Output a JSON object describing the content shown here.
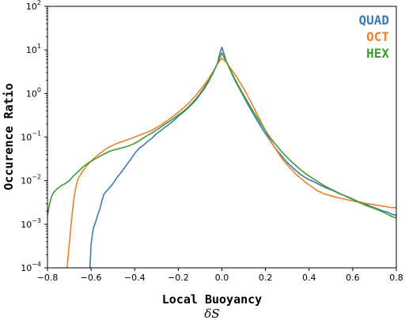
{
  "chart_data": {
    "type": "line",
    "title": "",
    "xlabel": "Local Buoyancy",
    "xlabel_symbol": "δS",
    "ylabel": "Occurence Ratio",
    "xlim": [
      -0.8,
      0.8
    ],
    "ylim": [
      0.0001,
      100
    ],
    "yscale": "log",
    "grid": false,
    "legend_position": "top-right",
    "x_ticks": [
      {
        "value": -0.8,
        "label": "−0.8"
      },
      {
        "value": -0.6,
        "label": "−0.6"
      },
      {
        "value": -0.4,
        "label": "−0.4"
      },
      {
        "value": -0.2,
        "label": "−0.2"
      },
      {
        "value": 0.0,
        "label": "0.0"
      },
      {
        "value": 0.2,
        "label": "0.2"
      },
      {
        "value": 0.4,
        "label": "0.4"
      },
      {
        "value": 0.6,
        "label": "0.6"
      },
      {
        "value": 0.8,
        "label": "0.8"
      }
    ],
    "y_ticks": [
      {
        "value": 0.0001,
        "base": "10",
        "exp": "−4"
      },
      {
        "value": 0.001,
        "base": "10",
        "exp": "−3"
      },
      {
        "value": 0.01,
        "base": "10",
        "exp": "−2"
      },
      {
        "value": 0.1,
        "base": "10",
        "exp": "−1"
      },
      {
        "value": 1,
        "base": "10",
        "exp": "0"
      },
      {
        "value": 10,
        "base": "10",
        "exp": "1"
      },
      {
        "value": 100,
        "base": "10",
        "exp": "2"
      }
    ],
    "series": [
      {
        "name": "QUAD",
        "color": "#3a7ab8",
        "points": [
          [
            -0.605,
            0.0001
          ],
          [
            -0.6,
            0.00035
          ],
          [
            -0.59,
            0.0008
          ],
          [
            -0.58,
            0.0011
          ],
          [
            -0.57,
            0.0016
          ],
          [
            -0.56,
            0.0022
          ],
          [
            -0.55,
            0.0035
          ],
          [
            -0.54,
            0.005
          ],
          [
            -0.52,
            0.0065
          ],
          [
            -0.5,
            0.0085
          ],
          [
            -0.48,
            0.012
          ],
          [
            -0.46,
            0.016
          ],
          [
            -0.44,
            0.022
          ],
          [
            -0.42,
            0.03
          ],
          [
            -0.4,
            0.042
          ],
          [
            -0.38,
            0.055
          ],
          [
            -0.36,
            0.065
          ],
          [
            -0.34,
            0.08
          ],
          [
            -0.32,
            0.095
          ],
          [
            -0.3,
            0.12
          ],
          [
            -0.28,
            0.14
          ],
          [
            -0.26,
            0.17
          ],
          [
            -0.24,
            0.2
          ],
          [
            -0.22,
            0.24
          ],
          [
            -0.2,
            0.3
          ],
          [
            -0.18,
            0.36
          ],
          [
            -0.16,
            0.44
          ],
          [
            -0.14,
            0.55
          ],
          [
            -0.12,
            0.7
          ],
          [
            -0.1,
            0.95
          ],
          [
            -0.08,
            1.3
          ],
          [
            -0.06,
            1.9
          ],
          [
            -0.04,
            3.0
          ],
          [
            -0.02,
            5.0
          ],
          [
            -0.01,
            8.0
          ],
          [
            0.0,
            11.5
          ],
          [
            0.01,
            8.0
          ],
          [
            0.02,
            5.5
          ],
          [
            0.04,
            3.3
          ],
          [
            0.06,
            2.0
          ],
          [
            0.08,
            1.3
          ],
          [
            0.1,
            0.85
          ],
          [
            0.12,
            0.55
          ],
          [
            0.14,
            0.37
          ],
          [
            0.16,
            0.25
          ],
          [
            0.18,
            0.17
          ],
          [
            0.2,
            0.12
          ],
          [
            0.22,
            0.085
          ],
          [
            0.24,
            0.06
          ],
          [
            0.26,
            0.045
          ],
          [
            0.28,
            0.034
          ],
          [
            0.3,
            0.026
          ],
          [
            0.32,
            0.021
          ],
          [
            0.34,
            0.017
          ],
          [
            0.36,
            0.014
          ],
          [
            0.38,
            0.012
          ],
          [
            0.4,
            0.0105
          ],
          [
            0.42,
            0.0095
          ],
          [
            0.44,
            0.0085
          ],
          [
            0.46,
            0.0075
          ],
          [
            0.48,
            0.0068
          ],
          [
            0.5,
            0.0062
          ],
          [
            0.52,
            0.0056
          ],
          [
            0.54,
            0.005
          ],
          [
            0.56,
            0.0046
          ],
          [
            0.58,
            0.0042
          ],
          [
            0.6,
            0.0038
          ],
          [
            0.62,
            0.0034
          ],
          [
            0.64,
            0.0031
          ],
          [
            0.66,
            0.0029
          ],
          [
            0.68,
            0.0026
          ],
          [
            0.7,
            0.0024
          ],
          [
            0.72,
            0.0022
          ],
          [
            0.74,
            0.002
          ],
          [
            0.76,
            0.0019
          ],
          [
            0.78,
            0.0017
          ],
          [
            0.8,
            0.0016
          ]
        ]
      },
      {
        "name": "OCT",
        "color": "#f07f2a",
        "points": [
          [
            -0.71,
            0.0001
          ],
          [
            -0.7,
            0.00035
          ],
          [
            -0.69,
            0.0012
          ],
          [
            -0.68,
            0.0035
          ],
          [
            -0.67,
            0.007
          ],
          [
            -0.66,
            0.011
          ],
          [
            -0.64,
            0.016
          ],
          [
            -0.62,
            0.022
          ],
          [
            -0.6,
            0.028
          ],
          [
            -0.58,
            0.035
          ],
          [
            -0.56,
            0.042
          ],
          [
            -0.54,
            0.05
          ],
          [
            -0.52,
            0.058
          ],
          [
            -0.5,
            0.065
          ],
          [
            -0.48,
            0.072
          ],
          [
            -0.46,
            0.078
          ],
          [
            -0.44,
            0.085
          ],
          [
            -0.42,
            0.092
          ],
          [
            -0.4,
            0.1
          ],
          [
            -0.38,
            0.11
          ],
          [
            -0.36,
            0.12
          ],
          [
            -0.34,
            0.13
          ],
          [
            -0.32,
            0.145
          ],
          [
            -0.3,
            0.165
          ],
          [
            -0.28,
            0.19
          ],
          [
            -0.26,
            0.22
          ],
          [
            -0.24,
            0.26
          ],
          [
            -0.22,
            0.31
          ],
          [
            -0.2,
            0.37
          ],
          [
            -0.18,
            0.45
          ],
          [
            -0.16,
            0.55
          ],
          [
            -0.14,
            0.7
          ],
          [
            -0.12,
            0.9
          ],
          [
            -0.1,
            1.2
          ],
          [
            -0.08,
            1.6
          ],
          [
            -0.06,
            2.2
          ],
          [
            -0.04,
            3.2
          ],
          [
            -0.02,
            4.8
          ],
          [
            0.0,
            6.5
          ],
          [
            0.02,
            5.2
          ],
          [
            0.04,
            3.8
          ],
          [
            0.06,
            2.7
          ],
          [
            0.08,
            1.9
          ],
          [
            0.1,
            1.3
          ],
          [
            0.12,
            0.85
          ],
          [
            0.14,
            0.55
          ],
          [
            0.16,
            0.35
          ],
          [
            0.18,
            0.22
          ],
          [
            0.2,
            0.14
          ],
          [
            0.22,
            0.09
          ],
          [
            0.24,
            0.06
          ],
          [
            0.26,
            0.042
          ],
          [
            0.28,
            0.03
          ],
          [
            0.3,
            0.023
          ],
          [
            0.32,
            0.018
          ],
          [
            0.34,
            0.014
          ],
          [
            0.36,
            0.0115
          ],
          [
            0.38,
            0.0095
          ],
          [
            0.4,
            0.008
          ],
          [
            0.42,
            0.0068
          ],
          [
            0.44,
            0.0058
          ],
          [
            0.46,
            0.0052
          ],
          [
            0.48,
            0.0048
          ],
          [
            0.5,
            0.0045
          ],
          [
            0.52,
            0.0042
          ],
          [
            0.54,
            0.004
          ],
          [
            0.56,
            0.0038
          ],
          [
            0.58,
            0.0036
          ],
          [
            0.6,
            0.0034
          ],
          [
            0.62,
            0.0033
          ],
          [
            0.64,
            0.0032
          ],
          [
            0.66,
            0.003
          ],
          [
            0.68,
            0.0029
          ],
          [
            0.7,
            0.0028
          ],
          [
            0.72,
            0.0027
          ],
          [
            0.74,
            0.0026
          ],
          [
            0.76,
            0.0025
          ],
          [
            0.78,
            0.0024
          ],
          [
            0.8,
            0.0024
          ]
        ]
      },
      {
        "name": "HEX",
        "color": "#3f9b32",
        "points": [
          [
            -0.8,
            0.0016
          ],
          [
            -0.79,
            0.003
          ],
          [
            -0.78,
            0.0045
          ],
          [
            -0.77,
            0.0055
          ],
          [
            -0.76,
            0.0062
          ],
          [
            -0.75,
            0.0068
          ],
          [
            -0.74,
            0.0075
          ],
          [
            -0.72,
            0.0085
          ],
          [
            -0.7,
            0.01
          ],
          [
            -0.68,
            0.013
          ],
          [
            -0.66,
            0.016
          ],
          [
            -0.64,
            0.02
          ],
          [
            -0.62,
            0.024
          ],
          [
            -0.6,
            0.028
          ],
          [
            -0.58,
            0.032
          ],
          [
            -0.56,
            0.036
          ],
          [
            -0.54,
            0.041
          ],
          [
            -0.52,
            0.046
          ],
          [
            -0.5,
            0.05
          ],
          [
            -0.48,
            0.053
          ],
          [
            -0.46,
            0.056
          ],
          [
            -0.44,
            0.06
          ],
          [
            -0.42,
            0.065
          ],
          [
            -0.4,
            0.072
          ],
          [
            -0.38,
            0.082
          ],
          [
            -0.36,
            0.095
          ],
          [
            -0.34,
            0.11
          ],
          [
            -0.32,
            0.125
          ],
          [
            -0.3,
            0.145
          ],
          [
            -0.28,
            0.17
          ],
          [
            -0.26,
            0.2
          ],
          [
            -0.24,
            0.23
          ],
          [
            -0.22,
            0.27
          ],
          [
            -0.2,
            0.32
          ],
          [
            -0.18,
            0.38
          ],
          [
            -0.16,
            0.46
          ],
          [
            -0.14,
            0.58
          ],
          [
            -0.12,
            0.75
          ],
          [
            -0.1,
            1.0
          ],
          [
            -0.08,
            1.4
          ],
          [
            -0.06,
            2.0
          ],
          [
            -0.04,
            3.0
          ],
          [
            -0.02,
            5.0
          ],
          [
            0.0,
            8.5
          ],
          [
            0.02,
            5.4
          ],
          [
            0.04,
            3.4
          ],
          [
            0.06,
            2.1
          ],
          [
            0.08,
            1.4
          ],
          [
            0.1,
            0.92
          ],
          [
            0.12,
            0.62
          ],
          [
            0.14,
            0.42
          ],
          [
            0.16,
            0.29
          ],
          [
            0.18,
            0.2
          ],
          [
            0.2,
            0.14
          ],
          [
            0.22,
            0.1
          ],
          [
            0.24,
            0.074
          ],
          [
            0.26,
            0.056
          ],
          [
            0.28,
            0.043
          ],
          [
            0.3,
            0.034
          ],
          [
            0.32,
            0.027
          ],
          [
            0.34,
            0.022
          ],
          [
            0.36,
            0.018
          ],
          [
            0.38,
            0.015
          ],
          [
            0.4,
            0.0128
          ],
          [
            0.42,
            0.011
          ],
          [
            0.44,
            0.0095
          ],
          [
            0.46,
            0.0082
          ],
          [
            0.48,
            0.0072
          ],
          [
            0.5,
            0.0064
          ],
          [
            0.52,
            0.0057
          ],
          [
            0.54,
            0.0051
          ],
          [
            0.56,
            0.0046
          ],
          [
            0.58,
            0.0041
          ],
          [
            0.6,
            0.0037
          ],
          [
            0.62,
            0.0033
          ],
          [
            0.64,
            0.003
          ],
          [
            0.66,
            0.0027
          ],
          [
            0.68,
            0.0025
          ],
          [
            0.7,
            0.0023
          ],
          [
            0.72,
            0.0021
          ],
          [
            0.74,
            0.0019
          ],
          [
            0.76,
            0.0017
          ],
          [
            0.78,
            0.0015
          ],
          [
            0.8,
            0.0014
          ]
        ]
      }
    ]
  }
}
